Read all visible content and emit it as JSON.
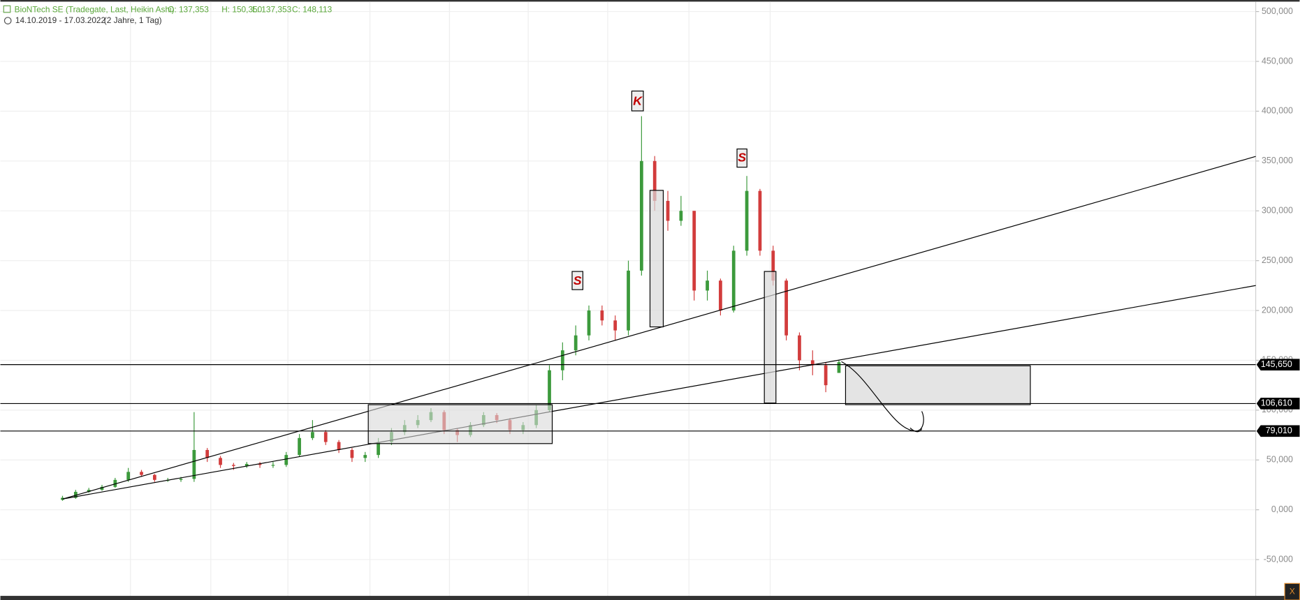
{
  "header": {
    "title": "BioNTech SE (Tradegate, Last, Heikin Ashi)",
    "quote": [
      "O: 137,353",
      "H: 150,350",
      "L: 137,353",
      "C: 148,113"
    ],
    "range": "14.10.2019 - 17.03.2022",
    "span": "(2 Jahre, 1 Tag)"
  },
  "close_button": "X",
  "chart_data": {
    "type": "candlestick",
    "ylim": [
      -86400,
      511600
    ],
    "yticks": [
      {
        "value": -50000,
        "label": "-50,000"
      },
      {
        "value": 0,
        "label": "0,000"
      },
      {
        "value": 50000,
        "label": "50,000"
      },
      {
        "value": 100000,
        "label": "100,000"
      },
      {
        "value": 150000,
        "label": "150,000"
      },
      {
        "value": 200000,
        "label": "200,000"
      },
      {
        "value": 250000,
        "label": "250,000"
      },
      {
        "value": 300000,
        "label": "300,000"
      },
      {
        "value": 350000,
        "label": "350,000"
      },
      {
        "value": 400000,
        "label": "400,000"
      },
      {
        "value": 450000,
        "label": "450,000"
      },
      {
        "value": 500000,
        "label": "500,000"
      }
    ],
    "grid": true,
    "up_color": "#3c9a3c",
    "down_color": "#d23c3c",
    "open": [
      10000,
      12000,
      18000,
      20000,
      23000,
      30000,
      38000,
      35000,
      30000,
      30000,
      31000,
      60000,
      52000,
      45000,
      44000,
      46000,
      45000,
      45000,
      55000,
      72000,
      78000,
      68000,
      60000,
      52000,
      55000,
      68000,
      78000,
      85000,
      90000,
      98000,
      80000,
      75000,
      85000,
      95000,
      90000,
      80000,
      85000,
      100000,
      140000,
      160000,
      175000,
      200000,
      190000,
      180000,
      240000,
      350000,
      310000,
      290000,
      300000,
      220000,
      230000,
      200000,
      260000,
      320000,
      260000,
      230000,
      175000,
      150000,
      145000,
      137353
    ],
    "high": [
      14000,
      20000,
      22000,
      25000,
      32000,
      42000,
      40000,
      36000,
      32000,
      33000,
      98000,
      62000,
      54000,
      47000,
      48000,
      48000,
      48000,
      58000,
      76000,
      90000,
      80000,
      70000,
      62000,
      58000,
      72000,
      82000,
      90000,
      95000,
      102000,
      100000,
      82000,
      88000,
      98000,
      97000,
      92000,
      88000,
      105000,
      145000,
      168000,
      185000,
      205000,
      205000,
      195000,
      250000,
      395000,
      355000,
      320000,
      315000,
      300000,
      240000,
      232000,
      265000,
      335000,
      322000,
      265000,
      232000,
      178000,
      160000,
      148000,
      150350
    ],
    "low": [
      9000,
      11000,
      17000,
      19000,
      22000,
      28000,
      33000,
      28000,
      28000,
      28000,
      28000,
      48000,
      42000,
      40000,
      42000,
      42000,
      42000,
      43000,
      53000,
      70000,
      65000,
      57000,
      48000,
      48000,
      52000,
      65000,
      75000,
      82000,
      88000,
      76000,
      68000,
      73000,
      83000,
      87000,
      76000,
      76000,
      82000,
      98000,
      130000,
      155000,
      170000,
      185000,
      170000,
      175000,
      235000,
      300000,
      280000,
      285000,
      210000,
      210000,
      195000,
      198000,
      255000,
      255000,
      225000,
      170000,
      140000,
      135000,
      118000,
      137353
    ],
    "close": [
      12000,
      18000,
      20000,
      23000,
      30000,
      38000,
      35000,
      30000,
      30000,
      31000,
      60000,
      52000,
      45000,
      44000,
      46000,
      45000,
      45000,
      55000,
      72000,
      78000,
      68000,
      60000,
      52000,
      55000,
      68000,
      78000,
      85000,
      90000,
      98000,
      80000,
      75000,
      85000,
      95000,
      90000,
      80000,
      85000,
      100000,
      140000,
      160000,
      175000,
      200000,
      190000,
      180000,
      240000,
      350000,
      310000,
      290000,
      300000,
      220000,
      230000,
      200000,
      260000,
      320000,
      260000,
      230000,
      175000,
      150000,
      145000,
      125000,
      148113
    ],
    "levels": [
      {
        "value": 145650,
        "label": "145,650"
      },
      {
        "value": 106610,
        "label": "106,610"
      },
      {
        "value": 79010,
        "label": "79,010"
      }
    ],
    "annotations": [
      "S",
      "K",
      "S"
    ]
  }
}
